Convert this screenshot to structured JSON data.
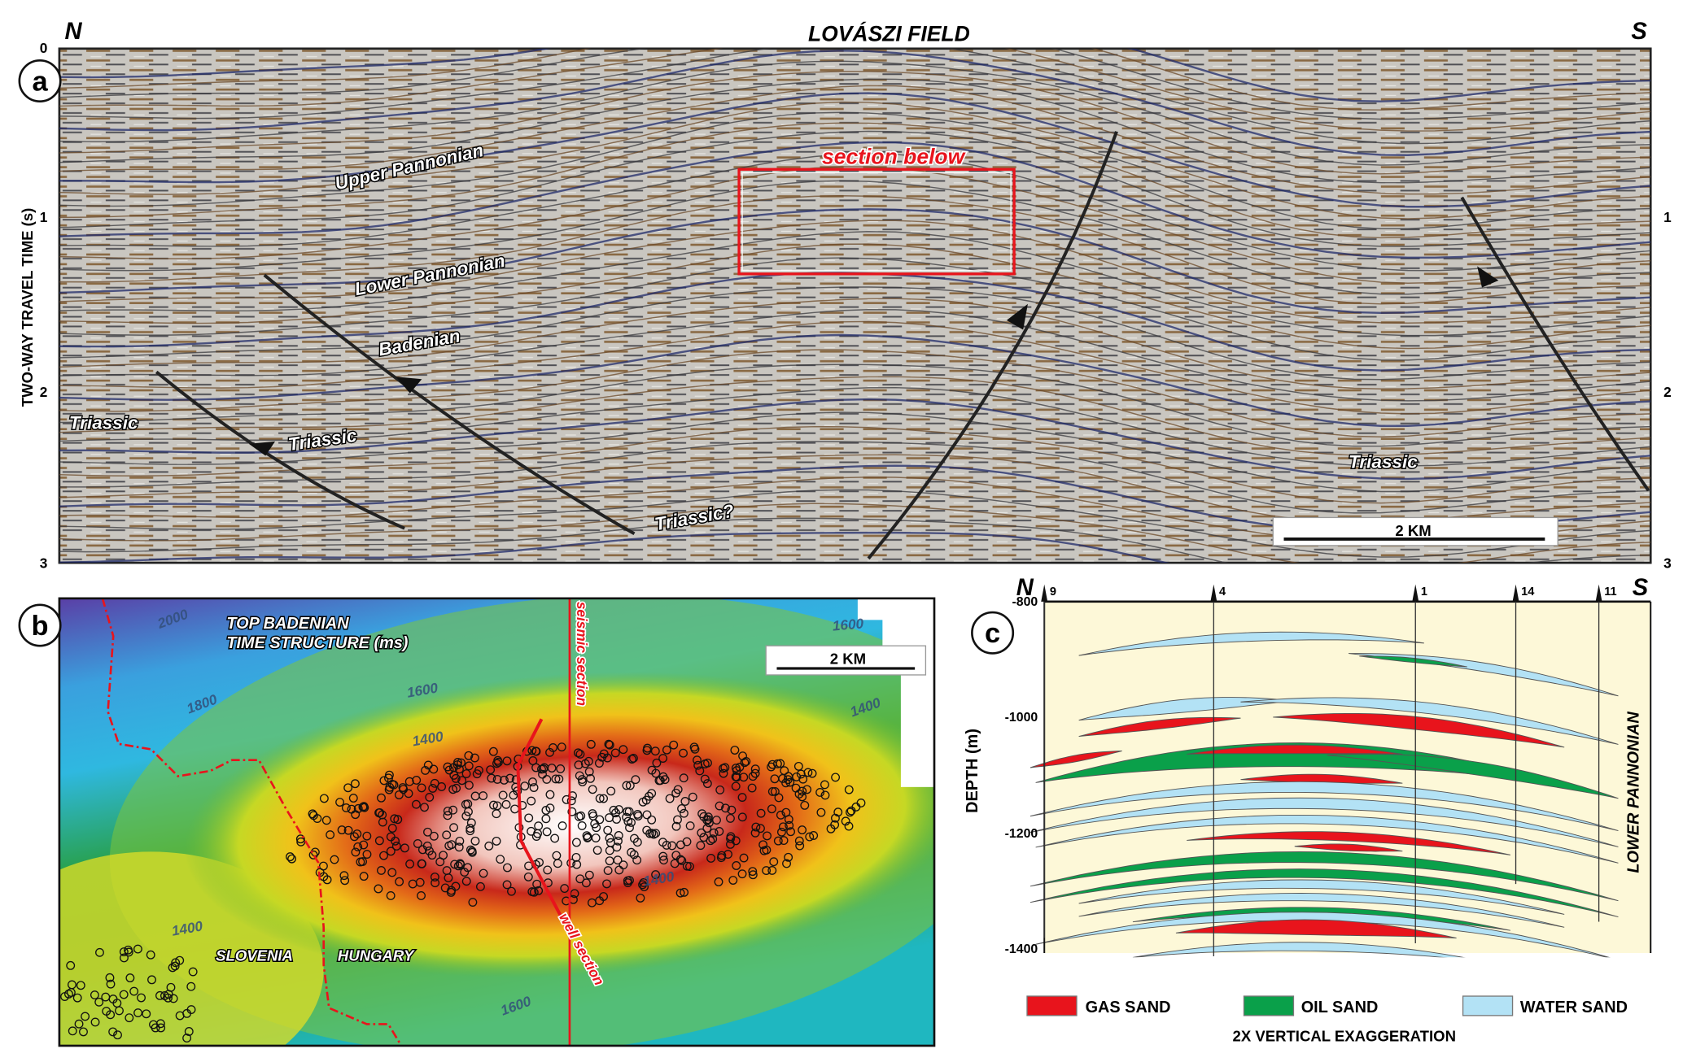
{
  "title": "LOVÁSZI FIELD",
  "colors": {
    "gas": "#e8141c",
    "oil": "#0aa04a",
    "water": "#b3e2f5",
    "section_red": "#e8141c",
    "panel_c_bg": "#fdf8d8"
  },
  "panel_a": {
    "label": "a",
    "north": "N",
    "south": "S",
    "y_axis_label": "TWO-WAY TRAVEL TIME (s)",
    "y_ticks": [
      "0",
      "1",
      "2",
      "3"
    ],
    "right_ticks": [
      "1",
      "2",
      "3"
    ],
    "units": [
      "Upper Pannonian",
      "Lower Pannonian",
      "Badenian",
      "Triassic",
      "Triassic",
      "Triassic?",
      "Triassic"
    ],
    "box_label": "section below",
    "scale_bar": "2 KM"
  },
  "panel_b": {
    "label": "b",
    "map_title_1": "TOP BADENIAN",
    "map_title_2": "TIME STRUCTURE (ms)",
    "contours": [
      "2000",
      "1800",
      "1600",
      "1400",
      "1600",
      "1400",
      "1400",
      "1400",
      "1600"
    ],
    "seismic_section": "seismic section",
    "well_section": "well section",
    "country_west": "SLOVENIA",
    "country_east": "HUNGARY",
    "scale_bar": "2 KM"
  },
  "panel_c": {
    "label": "c",
    "north": "N",
    "south": "S",
    "y_axis_label": "DEPTH (m)",
    "y_ticks": [
      "-800",
      "-1000",
      "-1200",
      "-1400"
    ],
    "wells": [
      "9",
      "4",
      "1",
      "14",
      "11"
    ],
    "unit_label": "LOWER PANNONIAN",
    "legend": [
      "GAS SAND",
      "OIL SAND",
      "WATER SAND"
    ],
    "note": "2X VERTICAL EXAGGERATION"
  }
}
